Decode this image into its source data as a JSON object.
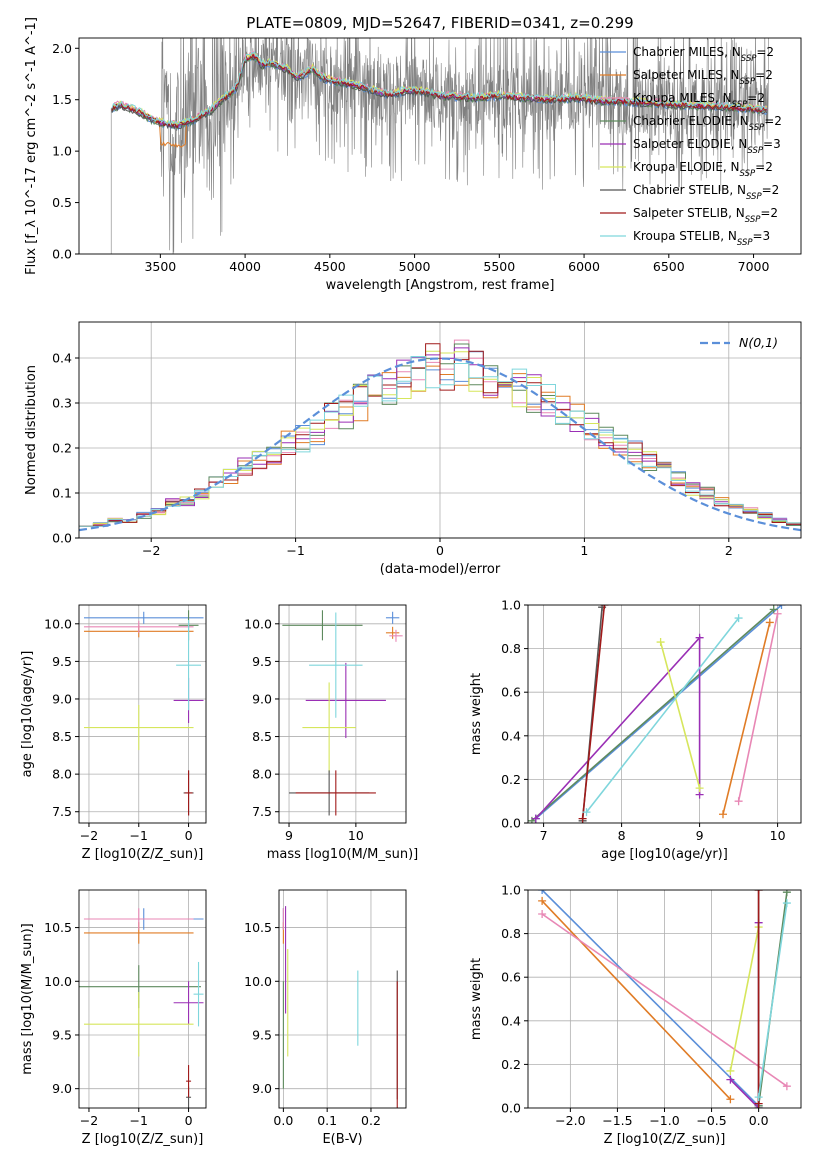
{
  "figure_title": "PLATE=0809, MJD=52647, FIBERID=0341, z=0.299",
  "legend_entries": [
    {
      "name": "Chabrier MILES",
      "nssp": "2",
      "color": "#5b8fd9"
    },
    {
      "name": "Salpeter MILES",
      "nssp": "2",
      "color": "#e07c26"
    },
    {
      "name": "Kroupa MILES",
      "nssp": "2",
      "color": "#e887b5"
    },
    {
      "name": "Chabrier ELODIE",
      "nssp": "2",
      "color": "#5e8a5e"
    },
    {
      "name": "Salpeter ELODIE",
      "nssp": "3",
      "color": "#9a2fb5"
    },
    {
      "name": "Kroupa ELODIE",
      "nssp": "2",
      "color": "#d6e65c"
    },
    {
      "name": "Chabrier STELIB",
      "nssp": "2",
      "color": "#555555"
    },
    {
      "name": "Salpeter STELIB",
      "nssp": "2",
      "color": "#a01a1a"
    },
    {
      "name": "Kroupa STELIB",
      "nssp": "3",
      "color": "#7fd6dc"
    }
  ],
  "chart_data": [
    {
      "id": "spectrum",
      "type": "line",
      "xlabel": "wavelength [Angstrom, rest frame]",
      "ylabel": "Flux [f_λ 10^-17 erg cm^-2 s^-1 A^-1]",
      "xlim": [
        3020,
        7280
      ],
      "ylim": [
        0,
        2.1
      ],
      "xticks": [
        3500,
        4000,
        4500,
        5000,
        5500,
        6000,
        6500,
        7000
      ],
      "yticks": [
        0.0,
        0.5,
        1.0,
        1.5,
        2.0
      ],
      "data_color": "#808080",
      "data_range": [
        3210,
        7090
      ],
      "model_range": [
        3215,
        7080
      ],
      "model_continuum": [
        [
          3215,
          1.42
        ],
        [
          3260,
          1.45
        ],
        [
          3300,
          1.43
        ],
        [
          3350,
          1.4
        ],
        [
          3400,
          1.36
        ],
        [
          3450,
          1.31
        ],
        [
          3500,
          1.28
        ],
        [
          3550,
          1.26
        ],
        [
          3600,
          1.25
        ],
        [
          3650,
          1.28
        ],
        [
          3700,
          1.31
        ],
        [
          3750,
          1.36
        ],
        [
          3800,
          1.4
        ],
        [
          3850,
          1.48
        ],
        [
          3900,
          1.55
        ],
        [
          3950,
          1.62
        ],
        [
          4000,
          1.9
        ],
        [
          4050,
          1.93
        ],
        [
          4100,
          1.84
        ],
        [
          4150,
          1.86
        ],
        [
          4200,
          1.82
        ],
        [
          4250,
          1.8
        ],
        [
          4300,
          1.72
        ],
        [
          4350,
          1.75
        ],
        [
          4400,
          1.8
        ],
        [
          4450,
          1.72
        ],
        [
          4500,
          1.69
        ],
        [
          4600,
          1.66
        ],
        [
          4700,
          1.62
        ],
        [
          4800,
          1.57
        ],
        [
          4860,
          1.55
        ],
        [
          4950,
          1.59
        ],
        [
          5050,
          1.58
        ],
        [
          5150,
          1.54
        ],
        [
          5250,
          1.53
        ],
        [
          5350,
          1.52
        ],
        [
          5500,
          1.54
        ],
        [
          5650,
          1.52
        ],
        [
          5800,
          1.5
        ],
        [
          5950,
          1.52
        ],
        [
          6100,
          1.49
        ],
        [
          6250,
          1.48
        ],
        [
          6400,
          1.47
        ],
        [
          6550,
          1.45
        ],
        [
          6700,
          1.44
        ],
        [
          6850,
          1.43
        ],
        [
          7000,
          1.41
        ],
        [
          7080,
          1.4
        ]
      ]
    },
    {
      "id": "residual-histogram",
      "type": "step",
      "xlabel": "(data-model)/error",
      "ylabel": "Normed distribution",
      "xlim": [
        -2.5,
        2.5
      ],
      "ylim": [
        0,
        0.48
      ],
      "xticks": [
        -2,
        -1,
        0,
        1,
        2
      ],
      "yticks": [
        0.0,
        0.1,
        0.2,
        0.3,
        0.4
      ],
      "bin_edges": [
        -2.5,
        2.5
      ],
      "bins": 50,
      "reference_label": "N(0,1)",
      "reference_color": "#5b8fd9",
      "series_profiles": [
        [
          0.03,
          0.03,
          0.04,
          0.04,
          0.05,
          0.06,
          0.08,
          0.08,
          0.1,
          0.12,
          0.14,
          0.16,
          0.17,
          0.19,
          0.21,
          0.22,
          0.24,
          0.27,
          0.28,
          0.3,
          0.32,
          0.33,
          0.35,
          0.36,
          0.38,
          0.38,
          0.39,
          0.37,
          0.36,
          0.34,
          0.33,
          0.32,
          0.3,
          0.28,
          0.27,
          0.25,
          0.23,
          0.21,
          0.19,
          0.17,
          0.15,
          0.13,
          0.11,
          0.1,
          0.08,
          0.07,
          0.06,
          0.05,
          0.04,
          0.03
        ]
      ]
    },
    {
      "id": "age-vs-Z",
      "type": "errorbar",
      "xlabel": "Z [log10(Z/Z_sun)]",
      "ylabel": "age  [log10(age/yr)]",
      "xlim": [
        -2.2,
        0.35
      ],
      "ylim": [
        7.35,
        10.25
      ],
      "xticks": [
        -2,
        -1,
        0
      ],
      "yticks": [
        7.5,
        8.0,
        8.5,
        9.0,
        9.5,
        10.0
      ],
      "points": [
        {
          "x": -0.9,
          "xerr": 1.2,
          "y": 10.08,
          "yerr": 0.08,
          "series": 0
        },
        {
          "x": -1.0,
          "xerr": 1.1,
          "y": 9.9,
          "yerr": 0.08,
          "series": 1
        },
        {
          "x": -1.0,
          "xerr": 1.1,
          "y": 9.96,
          "yerr": 0.08,
          "series": 2
        },
        {
          "x": 0.0,
          "xerr": 0.2,
          "y": 9.98,
          "yerr": 0.2,
          "series": 3
        },
        {
          "x": 0.0,
          "xerr": 0.3,
          "y": 8.98,
          "yerr": 0.3,
          "series": 4
        },
        {
          "x": -1.0,
          "xerr": 1.1,
          "y": 8.62,
          "yerr": 0.3,
          "series": 5
        },
        {
          "x": 0.0,
          "xerr": 0.1,
          "y": 7.75,
          "yerr": 0.3,
          "series": 6
        },
        {
          "x": 0.0,
          "xerr": 0.08,
          "y": 7.75,
          "yerr": 0.3,
          "series": 7
        },
        {
          "x": 0.0,
          "xerr": 0.25,
          "y": 9.45,
          "yerr": 0.6,
          "series": 8
        }
      ]
    },
    {
      "id": "age-vs-mass",
      "type": "errorbar",
      "xlabel": "mass [log10(M/M_sun)]",
      "ylabel": "",
      "xlim": [
        8.85,
        10.75
      ],
      "ylim": [
        7.35,
        10.25
      ],
      "xticks": [
        9,
        10
      ],
      "yticks": [
        7.5,
        8.0,
        8.5,
        9.0,
        9.5,
        10.0
      ],
      "points": [
        {
          "x": 10.55,
          "xerr": 0.1,
          "y": 10.08,
          "yerr": 0.08,
          "series": 0
        },
        {
          "x": 10.55,
          "xerr": 0.1,
          "y": 9.88,
          "yerr": 0.08,
          "series": 1
        },
        {
          "x": 10.6,
          "xerr": 0.1,
          "y": 9.84,
          "yerr": 0.08,
          "series": 2
        },
        {
          "x": 9.5,
          "xerr": 0.6,
          "y": 9.98,
          "yerr": 0.2,
          "series": 3
        },
        {
          "x": 9.85,
          "xerr": 0.6,
          "y": 8.98,
          "yerr": 0.5,
          "series": 4
        },
        {
          "x": 9.6,
          "xerr": 0.4,
          "y": 8.62,
          "yerr": 0.6,
          "series": 5
        },
        {
          "x": 9.6,
          "xerr": 0.6,
          "y": 7.75,
          "yerr": 0.3,
          "series": 6
        },
        {
          "x": 9.7,
          "xerr": 0.6,
          "y": 7.75,
          "yerr": 0.3,
          "series": 7
        },
        {
          "x": 9.7,
          "xerr": 0.4,
          "y": 9.45,
          "yerr": 0.7,
          "series": 8
        }
      ]
    },
    {
      "id": "weight-vs-age",
      "type": "line",
      "xlabel": "age  [log10(age/yr)]",
      "ylabel": "mass weight",
      "xlim": [
        6.8,
        10.3
      ],
      "ylim": [
        0,
        1
      ],
      "xticks": [
        7,
        8,
        9,
        10
      ],
      "yticks": [
        0.0,
        0.2,
        0.4,
        0.6,
        0.8,
        1.0
      ],
      "series": [
        {
          "x": [
            6.9,
            10.05
          ],
          "y": [
            0.02,
            1.0
          ]
        },
        {
          "x": [
            9.3,
            9.9
          ],
          "y": [
            0.04,
            0.92
          ]
        },
        {
          "x": [
            9.5,
            10.0
          ],
          "y": [
            0.1,
            0.96
          ]
        },
        {
          "x": [
            6.85,
            9.95
          ],
          "y": [
            0.01,
            0.98
          ]
        },
        {
          "x": [
            6.9,
            9.0,
            9.0
          ],
          "y": [
            0.02,
            0.85,
            0.13
          ]
        },
        {
          "x": [
            8.5,
            9.0
          ],
          "y": [
            0.83,
            0.16
          ]
        },
        {
          "x": [
            7.5,
            7.75
          ],
          "y": [
            0.01,
            0.99
          ]
        },
        {
          "x": [
            7.5,
            7.78
          ],
          "y": [
            0.02,
            1.0
          ]
        },
        {
          "x": [
            7.55,
            9.5
          ],
          "y": [
            0.05,
            0.94
          ]
        }
      ]
    },
    {
      "id": "mass-vs-Z",
      "type": "errorbar",
      "xlabel": "Z [log10(Z/Z_sun)]",
      "ylabel": "mass [log10(M/M_sun)]",
      "xlim": [
        -2.2,
        0.35
      ],
      "ylim": [
        8.82,
        10.85
      ],
      "xticks": [
        -2,
        -1,
        0
      ],
      "yticks": [
        9.0,
        9.5,
        10.0,
        10.5
      ],
      "points": [
        {
          "x": -0.9,
          "xerr": 1.2,
          "y": 10.58,
          "yerr": 0.1,
          "series": 0
        },
        {
          "x": -1.0,
          "xerr": 1.1,
          "y": 10.45,
          "yerr": 0.1,
          "series": 1
        },
        {
          "x": -1.0,
          "xerr": 1.1,
          "y": 10.58,
          "yerr": 0.1,
          "series": 2
        },
        {
          "x": -1.0,
          "xerr": 1.25,
          "y": 9.95,
          "yerr": 0.2,
          "series": 3
        },
        {
          "x": 0.0,
          "xerr": 0.3,
          "y": 9.8,
          "yerr": 0.2,
          "series": 4
        },
        {
          "x": -1.0,
          "xerr": 1.1,
          "y": 9.6,
          "yerr": 0.3,
          "series": 5
        },
        {
          "x": 0.0,
          "xerr": 0.05,
          "y": 8.92,
          "yerr": 0.1,
          "series": 6
        },
        {
          "x": 0.0,
          "xerr": 0.05,
          "y": 9.07,
          "yerr": 0.15,
          "series": 7
        },
        {
          "x": 0.2,
          "xerr": 0.1,
          "y": 9.88,
          "yerr": 0.3,
          "series": 8
        }
      ]
    },
    {
      "id": "mass-vs-EBV",
      "type": "errorbar",
      "xlabel": "E(B-V)",
      "ylabel": "",
      "xlim": [
        -0.01,
        0.28
      ],
      "ylim": [
        8.82,
        10.85
      ],
      "xticks": [
        0.0,
        0.1,
        0.2
      ],
      "yticks": [
        9.0,
        9.5,
        10.0,
        10.5
      ],
      "points": [
        {
          "x": 0.0,
          "xerr": 0.0,
          "y": 10.58,
          "yerr": 0.1,
          "series": 0
        },
        {
          "x": 0.0,
          "xerr": 0.0,
          "y": 10.45,
          "yerr": 0.1,
          "series": 1
        },
        {
          "x": 0.0,
          "xerr": 0.0,
          "y": 10.58,
          "yerr": 0.1,
          "series": 2
        },
        {
          "x": 0.0,
          "xerr": 0.0,
          "y": 9.5,
          "yerr": 0.5,
          "series": 3
        },
        {
          "x": 0.005,
          "xerr": 0.0,
          "y": 10.2,
          "yerr": 0.5,
          "series": 4
        },
        {
          "x": 0.01,
          "xerr": 0.0,
          "y": 9.8,
          "yerr": 0.5,
          "series": 5
        },
        {
          "x": 0.26,
          "xerr": 0.0,
          "y": 9.5,
          "yerr": 0.6,
          "series": 6
        },
        {
          "x": 0.26,
          "xerr": 0.0,
          "y": 9.4,
          "yerr": 0.6,
          "series": 7
        },
        {
          "x": 0.17,
          "xerr": 0.0,
          "y": 9.75,
          "yerr": 0.35,
          "series": 8
        }
      ]
    },
    {
      "id": "weight-vs-Z",
      "type": "line",
      "xlabel": "Z [log10(Z/Z_sun)]",
      "ylabel": "mass weight",
      "xlim": [
        -2.45,
        0.45
      ],
      "ylim": [
        0,
        1
      ],
      "xticks": [
        -2.0,
        -1.5,
        -1.0,
        -0.5,
        0.0
      ],
      "yticks": [
        0.0,
        0.2,
        0.4,
        0.6,
        0.8,
        1.0
      ],
      "series": [
        {
          "x": [
            -2.3,
            0.0
          ],
          "y": [
            1.0,
            0.01
          ]
        },
        {
          "x": [
            -2.3,
            -0.3
          ],
          "y": [
            0.95,
            0.04
          ]
        },
        {
          "x": [
            -2.3,
            0.3
          ],
          "y": [
            0.89,
            0.1
          ]
        },
        {
          "x": [
            0.0,
            0.3
          ],
          "y": [
            0.01,
            0.99
          ]
        },
        {
          "x": [
            -0.3,
            0.0,
            0.0
          ],
          "y": [
            0.13,
            0.0,
            0.85
          ]
        },
        {
          "x": [
            -0.3,
            0.0
          ],
          "y": [
            0.17,
            0.83
          ]
        },
        {
          "x": [
            0.0,
            0.0
          ],
          "y": [
            0.0,
            1.0
          ]
        },
        {
          "x": [
            0.0,
            0.0
          ],
          "y": [
            0.02,
            1.0
          ]
        },
        {
          "x": [
            0.0,
            0.3
          ],
          "y": [
            0.05,
            0.94
          ]
        }
      ]
    }
  ]
}
